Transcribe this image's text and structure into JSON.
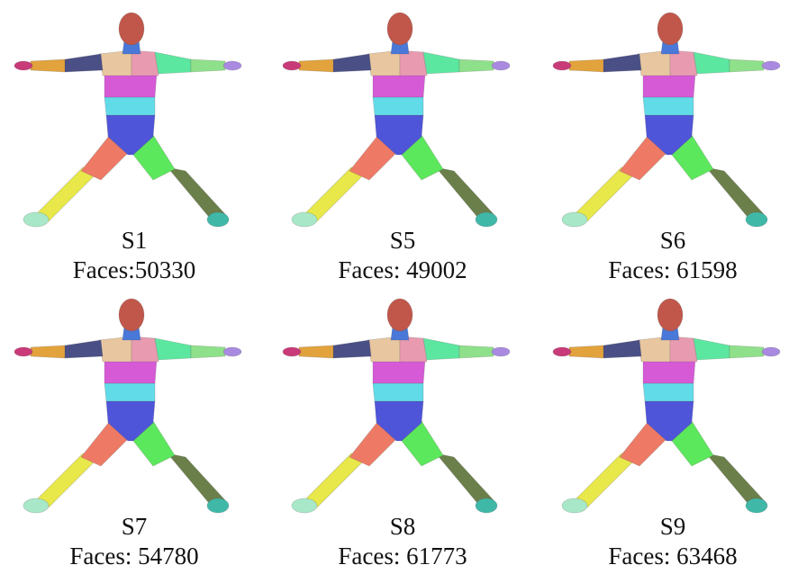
{
  "subjects": [
    {
      "name": "S1",
      "faces": "Faces:50330"
    },
    {
      "name": "S5",
      "faces": "Faces: 49002"
    },
    {
      "name": "S6",
      "faces": "Faces: 61598"
    },
    {
      "name": "S7",
      "faces": "Faces: 54780"
    },
    {
      "name": "S8",
      "faces": "Faces: 61773"
    },
    {
      "name": "S9",
      "faces": "Faces: 63468"
    }
  ],
  "segment_colors": {
    "head": "#c0574a",
    "neck": "#4a78d8",
    "shoulder_left": "#e8c7a0",
    "shoulder_right": "#e89bb0",
    "upper_arm_left": "#4a4f86",
    "forearm_left": "#e2a23c",
    "hand_left": "#c93a78",
    "upper_arm_right": "#5ce7a0",
    "forearm_right": "#8fe08a",
    "hand_right": "#a98ae0",
    "chest": "#d65ad6",
    "waist": "#62dbe8",
    "pelvis": "#4f55d8",
    "thigh_left": "#ee7a66",
    "thigh_right": "#5ce85c",
    "shin_left": "#e8e84a",
    "shin_right": "#6b7f4a",
    "foot_left": "#a8e8c8",
    "foot_right": "#3fb8a8"
  }
}
